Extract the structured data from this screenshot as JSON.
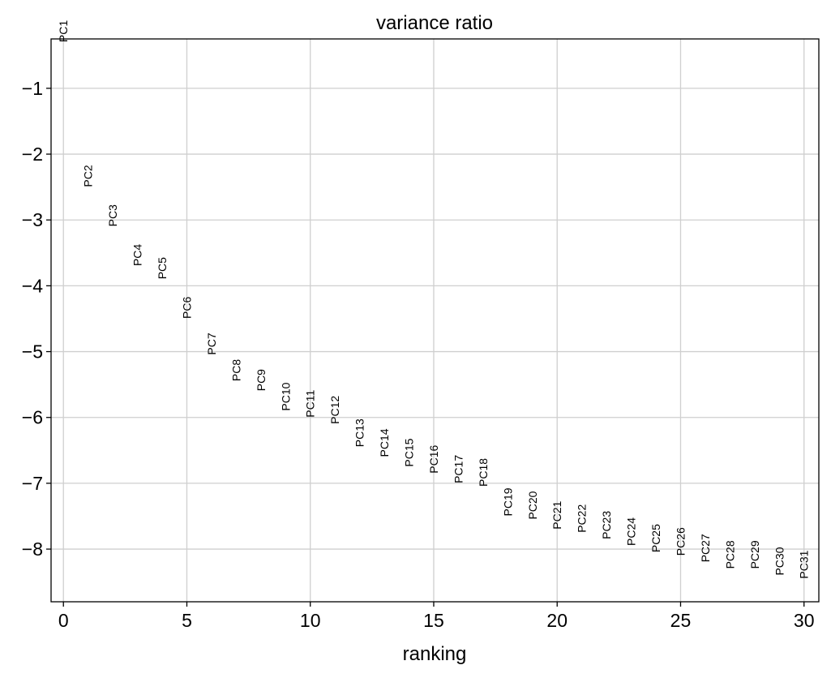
{
  "chart_data": {
    "type": "scatter",
    "title": "variance ratio",
    "xlabel": "ranking",
    "ylabel": "",
    "xlim": [
      -0.5,
      30.6
    ],
    "ylim": [
      -8.8,
      -0.25
    ],
    "xticks": [
      0,
      5,
      10,
      15,
      20,
      25,
      30
    ],
    "xtick_labels": [
      "0",
      "5",
      "10",
      "15",
      "20",
      "25",
      "30"
    ],
    "yticks": [
      -1,
      -2,
      -3,
      -4,
      -5,
      -6,
      -7,
      -8
    ],
    "ytick_labels": [
      "−1",
      "−2",
      "−3",
      "−4",
      "−5",
      "−6",
      "−7",
      "−8"
    ],
    "grid": true,
    "marker_style": "rotated text labels",
    "points": [
      {
        "label": "PC1",
        "x": 0,
        "y": -0.3
      },
      {
        "label": "PC2",
        "x": 1,
        "y": -2.5
      },
      {
        "label": "PC3",
        "x": 2,
        "y": -3.1
      },
      {
        "label": "PC4",
        "x": 3,
        "y": -3.7
      },
      {
        "label": "PC5",
        "x": 4,
        "y": -3.9
      },
      {
        "label": "PC6",
        "x": 5,
        "y": -4.5
      },
      {
        "label": "PC7",
        "x": 6,
        "y": -5.05
      },
      {
        "label": "PC8",
        "x": 7,
        "y": -5.45
      },
      {
        "label": "PC9",
        "x": 8,
        "y": -5.6
      },
      {
        "label": "PC10",
        "x": 9,
        "y": -5.9
      },
      {
        "label": "PC11",
        "x": 10,
        "y": -6.0
      },
      {
        "label": "PC12",
        "x": 11,
        "y": -6.1
      },
      {
        "label": "PC13",
        "x": 12,
        "y": -6.45
      },
      {
        "label": "PC14",
        "x": 13,
        "y": -6.6
      },
      {
        "label": "PC15",
        "x": 14,
        "y": -6.75
      },
      {
        "label": "PC16",
        "x": 15,
        "y": -6.85
      },
      {
        "label": "PC17",
        "x": 16,
        "y": -7.0
      },
      {
        "label": "PC18",
        "x": 17,
        "y": -7.05
      },
      {
        "label": "PC19",
        "x": 18,
        "y": -7.5
      },
      {
        "label": "PC20",
        "x": 19,
        "y": -7.55
      },
      {
        "label": "PC21",
        "x": 20,
        "y": -7.7
      },
      {
        "label": "PC22",
        "x": 21,
        "y": -7.75
      },
      {
        "label": "PC23",
        "x": 22,
        "y": -7.85
      },
      {
        "label": "PC24",
        "x": 23,
        "y": -7.95
      },
      {
        "label": "PC25",
        "x": 24,
        "y": -8.05
      },
      {
        "label": "PC26",
        "x": 25,
        "y": -8.1
      },
      {
        "label": "PC27",
        "x": 26,
        "y": -8.2
      },
      {
        "label": "PC28",
        "x": 27,
        "y": -8.3
      },
      {
        "label": "PC29",
        "x": 28,
        "y": -8.3
      },
      {
        "label": "PC30",
        "x": 29,
        "y": -8.4
      },
      {
        "label": "PC31",
        "x": 30,
        "y": -8.45
      }
    ],
    "colors": {
      "text": "#000000",
      "grid": "#cfcfcf",
      "background": "#ffffff"
    }
  }
}
